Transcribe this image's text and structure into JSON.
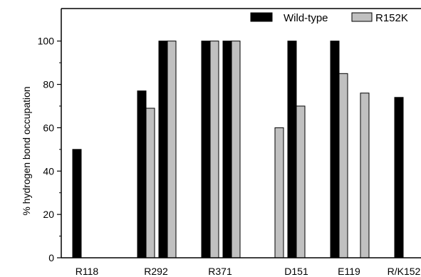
{
  "chart_data": {
    "type": "bar",
    "ylabel": "% hydrogen bond occupation",
    "xlabel": "",
    "title": "",
    "ylim": [
      0,
      115
    ],
    "yticks": [
      0,
      20,
      40,
      60,
      80,
      100
    ],
    "grid": false,
    "legend_position": "top-right",
    "categories": [
      "R118",
      "R292",
      "R371",
      "D151",
      "E119",
      "R/K152"
    ],
    "series": [
      {
        "name": "Wild-type",
        "color": "#000000"
      },
      {
        "name": "R152K",
        "color": "#c0c0c0"
      }
    ],
    "bars": [
      {
        "category": "R118",
        "series": "Wild-type",
        "value": 50
      },
      {
        "category": "R292",
        "series": "Wild-type",
        "value": 77
      },
      {
        "category": "R292",
        "series": "R152K",
        "value": 69
      },
      {
        "category": "R292",
        "series": "Wild-type",
        "value": 100
      },
      {
        "category": "R292",
        "series": "R152K",
        "value": 100
      },
      {
        "category": "R371",
        "series": "Wild-type",
        "value": 100
      },
      {
        "category": "R371",
        "series": "R152K",
        "value": 100
      },
      {
        "category": "R371",
        "series": "Wild-type",
        "value": 100
      },
      {
        "category": "R371",
        "series": "R152K",
        "value": 100
      },
      {
        "category": "D151",
        "series": "R152K",
        "value": 60
      },
      {
        "category": "D151",
        "series": "Wild-type",
        "value": 100
      },
      {
        "category": "D151",
        "series": "R152K",
        "value": 70
      },
      {
        "category": "E119",
        "series": "Wild-type",
        "value": 100
      },
      {
        "category": "E119",
        "series": "R152K",
        "value": 85
      },
      {
        "category": "E119",
        "series": "R152K",
        "value": 76
      },
      {
        "category": "R/K152",
        "series": "Wild-type",
        "value": 74
      }
    ]
  }
}
